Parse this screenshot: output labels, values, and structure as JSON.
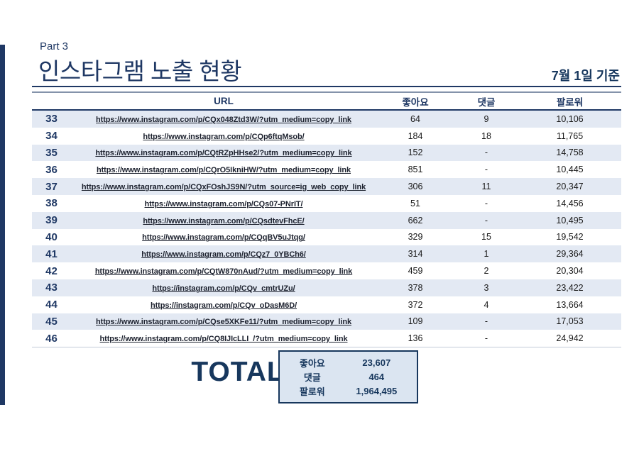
{
  "page": {
    "part_label": "Part 3",
    "title": "인스타그램 노출 현황",
    "date_label": "7월 1일 기준"
  },
  "colors": {
    "accent_navy": "#1f3864",
    "dark_navy": "#17375d",
    "row_shade": "#e3e9f3",
    "total_box_bg": "#dbe5f1"
  },
  "table": {
    "columns": {
      "no": "",
      "url": "URL",
      "likes": "좋아요",
      "comments": "댓글",
      "followers": "팔로워"
    },
    "rows": [
      {
        "no": "33",
        "url": "https://www.instagram.com/p/CQx048Ztd3W/?utm_medium=copy_link",
        "likes": "64",
        "comments": "9",
        "followers": "10,106"
      },
      {
        "no": "34",
        "url": "https://www.instagram.com/p/CQp6ftqMsob/",
        "likes": "184",
        "comments": "18",
        "followers": "11,765"
      },
      {
        "no": "35",
        "url": "https://www.instagram.com/p/CQtRZpHHse2/?utm_medium=copy_link",
        "likes": "152",
        "comments": "-",
        "followers": "14,758"
      },
      {
        "no": "36",
        "url": "https://www.instagram.com/p/CQrO5IkniHW/?utm_medium=copy_link",
        "likes": "851",
        "comments": "-",
        "followers": "10,445"
      },
      {
        "no": "37",
        "url": "https://www.instagram.com/p/CQxFOshJS9N/?utm_source=ig_web_copy_link",
        "likes": "306",
        "comments": "11",
        "followers": "20,347"
      },
      {
        "no": "38",
        "url": "https://www.instagram.com/p/CQs07-PNrIT/",
        "likes": "51",
        "comments": "-",
        "followers": "14,456"
      },
      {
        "no": "39",
        "url": "https://www.instagram.com/p/CQsdtevFhcE/",
        "likes": "662",
        "comments": "-",
        "followers": "10,495"
      },
      {
        "no": "40",
        "url": "https://www.instagram.com/p/CQqBV5uJtqg/",
        "likes": "329",
        "comments": "15",
        "followers": "19,542"
      },
      {
        "no": "41",
        "url": "https://www.instagram.com/p/CQz7_0YBCh6/",
        "likes": "314",
        "comments": "1",
        "followers": "29,364"
      },
      {
        "no": "42",
        "url": "https://www.instagram.com/p/CQtW870nAud/?utm_medium=copy_link",
        "likes": "459",
        "comments": "2",
        "followers": "20,304"
      },
      {
        "no": "43",
        "url": "https://instagram.com/p/CQv_cmtrUZu/",
        "likes": "378",
        "comments": "3",
        "followers": "23,422"
      },
      {
        "no": "44",
        "url": "https://instagram.com/p/CQv_oDasM6D/",
        "likes": "372",
        "comments": "4",
        "followers": "13,664"
      },
      {
        "no": "45",
        "url": "https://www.instagram.com/p/CQse5XKFe11/?utm_medium=copy_link",
        "likes": "109",
        "comments": "-",
        "followers": "17,053"
      },
      {
        "no": "46",
        "url": "https://www.instagram.com/p/CQ8IJIcLLI_/?utm_medium=copy_link",
        "likes": "136",
        "comments": "-",
        "followers": "24,942"
      }
    ]
  },
  "total": {
    "label": "TOTAL",
    "rows": [
      {
        "label": "좋아요",
        "value": "23,607"
      },
      {
        "label": "댓글",
        "value": "464"
      },
      {
        "label": "팔로워",
        "value": "1,964,495"
      }
    ]
  }
}
